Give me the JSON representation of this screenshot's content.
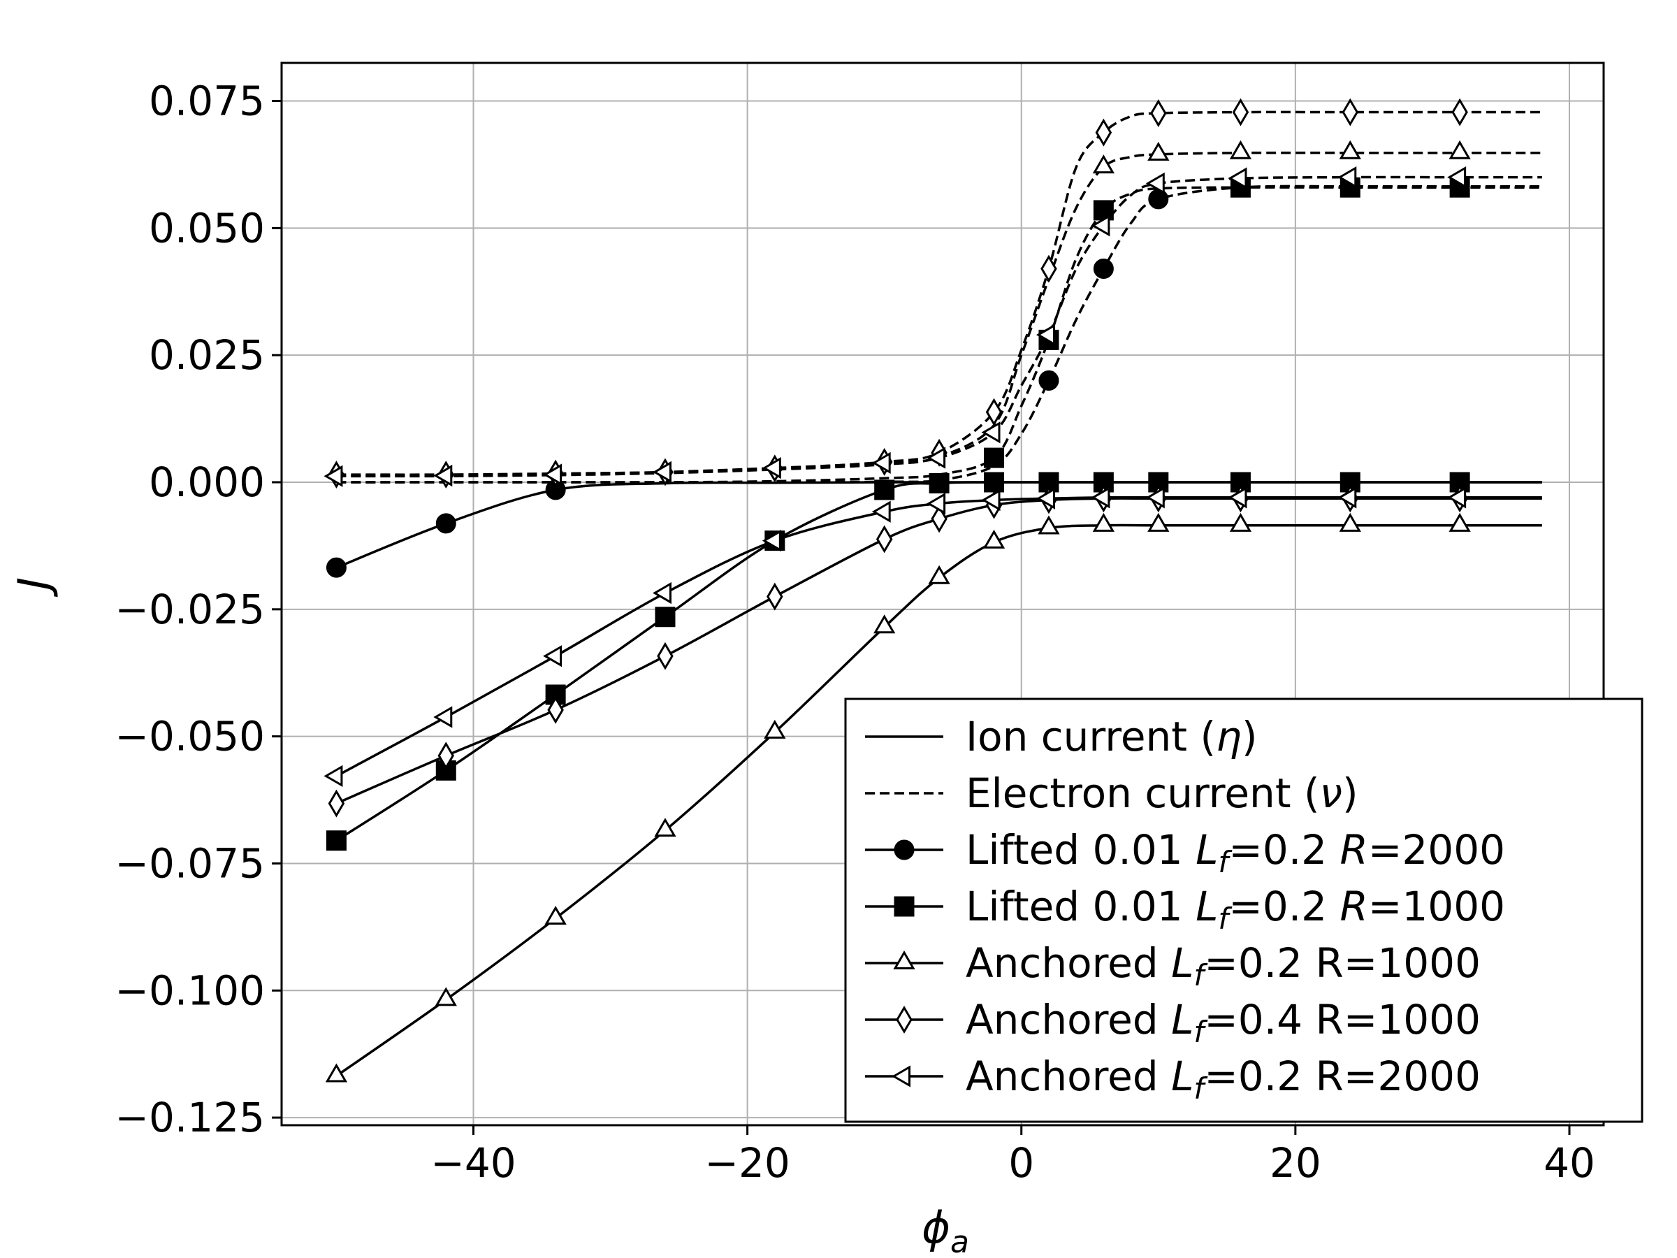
{
  "chart_data": {
    "type": "line",
    "title": "",
    "xlabel": "ϕ",
    "xlabel_sub": "a",
    "ylabel": "J",
    "xlim": [
      -54,
      42.5
    ],
    "ylim": [
      -0.1265,
      0.0825
    ],
    "grid": true,
    "legend_position": "lower-right",
    "x_ticks": [
      -40,
      -20,
      0,
      20,
      40
    ],
    "x_tick_labels": [
      "−40",
      "−20",
      "0",
      "20",
      "40"
    ],
    "y_ticks": [
      0.075,
      0.05,
      0.025,
      0.0,
      -0.025,
      -0.05,
      -0.075,
      -0.1,
      -0.125
    ],
    "y_tick_labels": [
      "0.075",
      "0.050",
      "0.025",
      "0.000",
      "−0.025",
      "−0.050",
      "−0.075",
      "−0.100",
      "−0.125"
    ],
    "legend_entries": [
      {
        "label_parts": [
          {
            "t": "Ion current ("
          },
          {
            "t": "η",
            "i": true
          },
          {
            "t": ")"
          }
        ],
        "line": "solid",
        "marker": "none"
      },
      {
        "label_parts": [
          {
            "t": "Electron current ("
          },
          {
            "t": "ν",
            "i": true
          },
          {
            "t": ")"
          }
        ],
        "line": "dashed",
        "marker": "none"
      },
      {
        "label_parts": [
          {
            "t": "Lifted 0.01 "
          },
          {
            "t": "L",
            "i": true
          },
          {
            "t": "f",
            "i": true,
            "sub": true
          },
          {
            "t": "=0.2 "
          },
          {
            "t": "R",
            "i": true
          },
          {
            "t": "=2000"
          }
        ],
        "line": "solid",
        "marker": "circle"
      },
      {
        "label_parts": [
          {
            "t": "Lifted 0.01 "
          },
          {
            "t": "L",
            "i": true
          },
          {
            "t": "f",
            "i": true,
            "sub": true
          },
          {
            "t": "=0.2 "
          },
          {
            "t": "R",
            "i": true
          },
          {
            "t": "=1000"
          }
        ],
        "line": "solid",
        "marker": "square"
      },
      {
        "label_parts": [
          {
            "t": "Anchored "
          },
          {
            "t": "L",
            "i": true
          },
          {
            "t": "f",
            "i": true,
            "sub": true
          },
          {
            "t": "=0.2 R=1000"
          }
        ],
        "line": "solid",
        "marker": "triangle-up"
      },
      {
        "label_parts": [
          {
            "t": "Anchored "
          },
          {
            "t": "L",
            "i": true
          },
          {
            "t": "f",
            "i": true,
            "sub": true
          },
          {
            "t": "=0.4 R=1000"
          }
        ],
        "line": "solid",
        "marker": "diamond"
      },
      {
        "label_parts": [
          {
            "t": "Anchored "
          },
          {
            "t": "L",
            "i": true
          },
          {
            "t": "f",
            "i": true,
            "sub": true
          },
          {
            "t": "=0.2 R=2000"
          }
        ],
        "line": "solid",
        "marker": "triangle-left"
      }
    ],
    "series": [
      {
        "case": "Lifted 0.01 Lf=0.2 R=2000",
        "current": "ion",
        "line": "solid",
        "marker": "circle",
        "fill": "filled",
        "x": [
          -50,
          -42,
          -34,
          -26,
          -18,
          -10,
          -6,
          -2,
          2,
          6,
          10,
          16,
          24,
          32,
          38
        ],
        "y": [
          -0.0168,
          -0.0081,
          -0.0015,
          -0.0002,
          -0.0001,
          0.0,
          0.0,
          0.0,
          0.0,
          0.0,
          0.0,
          0.0,
          0.0,
          0.0,
          0.0
        ],
        "marker_x": [
          -50,
          -42,
          -34
        ]
      },
      {
        "case": "Lifted 0.01 Lf=0.2 R=2000",
        "current": "electron",
        "line": "dashed",
        "marker": "circle",
        "fill": "filled",
        "x": [
          -50,
          -42,
          -34,
          -26,
          -18,
          -10,
          -6,
          -2,
          0,
          2,
          4,
          6,
          8,
          10,
          16,
          24,
          32,
          38
        ],
        "y": [
          0.0,
          0.0,
          0.0,
          0.0,
          0.0,
          0.0001,
          0.0004,
          0.0032,
          0.0095,
          0.02,
          0.032,
          0.042,
          0.051,
          0.0557,
          0.058,
          0.0582,
          0.0582,
          0.0582
        ],
        "marker_x": [
          2,
          6,
          10
        ]
      },
      {
        "case": "Lifted 0.01 Lf=0.2 R=1000",
        "current": "ion",
        "line": "solid",
        "marker": "square",
        "fill": "filled",
        "x": [
          -50,
          -42,
          -34,
          -26,
          -18,
          -10,
          -6,
          -2,
          2,
          6,
          10,
          16,
          24,
          32,
          38
        ],
        "y": [
          -0.0705,
          -0.0567,
          -0.0418,
          -0.0265,
          -0.0115,
          -0.0015,
          -0.0002,
          0.0,
          0.0,
          0.0,
          0.0,
          0.0,
          0.0,
          0.0,
          0.0
        ],
        "marker_x": [
          -50,
          -42,
          -34,
          -26,
          -18,
          -10,
          -6,
          -2,
          2,
          6,
          10,
          16,
          24,
          32
        ]
      },
      {
        "case": "Lifted 0.01 Lf=0.2 R=1000",
        "current": "electron",
        "line": "dashed",
        "marker": "square",
        "fill": "filled",
        "x": [
          -50,
          -42,
          -34,
          -26,
          -18,
          -10,
          -6,
          -2,
          0,
          2,
          4,
          6,
          8,
          10,
          16,
          24,
          32,
          38
        ],
        "y": [
          0.0,
          0.0,
          0.0,
          0.0,
          0.0002,
          0.0008,
          0.0015,
          0.0048,
          0.015,
          0.028,
          0.044,
          0.0535,
          0.0568,
          0.0578,
          0.058,
          0.058,
          0.058,
          0.058
        ],
        "marker_x": [
          -2,
          2,
          6,
          16,
          24,
          32
        ]
      },
      {
        "case": "Anchored Lf=0.2 R=1000",
        "current": "ion",
        "line": "solid",
        "marker": "triangle-up",
        "fill": "open",
        "x": [
          -50,
          -42,
          -34,
          -26,
          -18,
          -10,
          -6,
          -2,
          2,
          6,
          10,
          16,
          24,
          32,
          38
        ],
        "y": [
          -0.1168,
          -0.1018,
          -0.0858,
          -0.0685,
          -0.0492,
          -0.0285,
          -0.0188,
          -0.0118,
          -0.009,
          -0.0085,
          -0.0085,
          -0.0085,
          -0.0085,
          -0.0085,
          -0.0085
        ],
        "marker_x": [
          -50,
          -42,
          -34,
          -26,
          -18,
          -10,
          -6,
          -2,
          2,
          6,
          10,
          16,
          24,
          32
        ]
      },
      {
        "case": "Anchored Lf=0.2 R=1000",
        "current": "electron",
        "line": "dashed",
        "marker": "triangle-up",
        "fill": "open",
        "x": [
          -50,
          -42,
          -34,
          -26,
          -18,
          -10,
          -6,
          -2,
          0,
          2,
          4,
          6,
          8,
          10,
          16,
          24,
          32,
          38
        ],
        "y": [
          0.0012,
          0.0012,
          0.0014,
          0.0018,
          0.0025,
          0.0035,
          0.005,
          0.0112,
          0.025,
          0.04,
          0.054,
          0.062,
          0.064,
          0.0645,
          0.0648,
          0.0648,
          0.0648,
          0.0648
        ],
        "marker_x": [
          6,
          10,
          16,
          24,
          32
        ]
      },
      {
        "case": "Anchored Lf=0.4 R=1000",
        "current": "ion",
        "line": "solid",
        "marker": "diamond",
        "fill": "open",
        "x": [
          -50,
          -42,
          -34,
          -26,
          -18,
          -10,
          -6,
          -2,
          2,
          6,
          10,
          16,
          24,
          32,
          38
        ],
        "y": [
          -0.0632,
          -0.0538,
          -0.0448,
          -0.0342,
          -0.0225,
          -0.0112,
          -0.0072,
          -0.0045,
          -0.0035,
          -0.0032,
          -0.0032,
          -0.0032,
          -0.0032,
          -0.0032,
          -0.0032
        ],
        "marker_x": [
          -50,
          -42,
          -34,
          -26,
          -18,
          -10,
          -6,
          -2,
          2,
          6,
          10,
          16,
          24,
          32
        ]
      },
      {
        "case": "Anchored Lf=0.4 R=1000",
        "current": "electron",
        "line": "dashed",
        "marker": "diamond",
        "fill": "open",
        "x": [
          -50,
          -42,
          -34,
          -26,
          -18,
          -10,
          -6,
          -2,
          0,
          2,
          4,
          6,
          8,
          10,
          16,
          24,
          32,
          38
        ],
        "y": [
          0.0015,
          0.0015,
          0.0017,
          0.002,
          0.0027,
          0.004,
          0.0058,
          0.0138,
          0.026,
          0.042,
          0.062,
          0.0688,
          0.072,
          0.0726,
          0.0728,
          0.0728,
          0.0728,
          0.0728
        ],
        "marker_x": [
          -50,
          -42,
          -34,
          -26,
          -18,
          -10,
          -6,
          -2,
          2,
          6,
          10,
          16,
          24,
          32
        ]
      },
      {
        "case": "Anchored Lf=0.2 R=2000",
        "current": "ion",
        "line": "solid",
        "marker": "triangle-left",
        "fill": "open",
        "x": [
          -50,
          -42,
          -34,
          -26,
          -18,
          -10,
          -6,
          -2,
          2,
          6,
          10,
          16,
          24,
          32,
          38
        ],
        "y": [
          -0.0578,
          -0.0462,
          -0.0342,
          -0.0218,
          -0.0115,
          -0.0058,
          -0.0042,
          -0.0035,
          -0.0032,
          -0.003,
          -0.003,
          -0.003,
          -0.003,
          -0.003,
          -0.003
        ],
        "marker_x": [
          -50,
          -42,
          -34,
          -26,
          -18,
          -10,
          -6,
          -2,
          2,
          6,
          10,
          16,
          24,
          32
        ]
      },
      {
        "case": "Anchored Lf=0.2 R=2000",
        "current": "electron",
        "line": "dashed",
        "marker": "triangle-left",
        "fill": "open",
        "x": [
          -50,
          -42,
          -34,
          -26,
          -18,
          -10,
          -6,
          -2,
          0,
          2,
          4,
          6,
          8,
          10,
          16,
          24,
          32,
          38
        ],
        "y": [
          0.0012,
          0.0013,
          0.0015,
          0.002,
          0.0028,
          0.0038,
          0.0048,
          0.0098,
          0.019,
          0.029,
          0.042,
          0.0505,
          0.0565,
          0.0588,
          0.0598,
          0.06,
          0.06,
          0.06
        ],
        "marker_x": [
          -50,
          -42,
          -34,
          -26,
          -18,
          -10,
          -6,
          -2,
          2,
          6,
          10,
          16,
          24,
          32
        ]
      }
    ]
  }
}
